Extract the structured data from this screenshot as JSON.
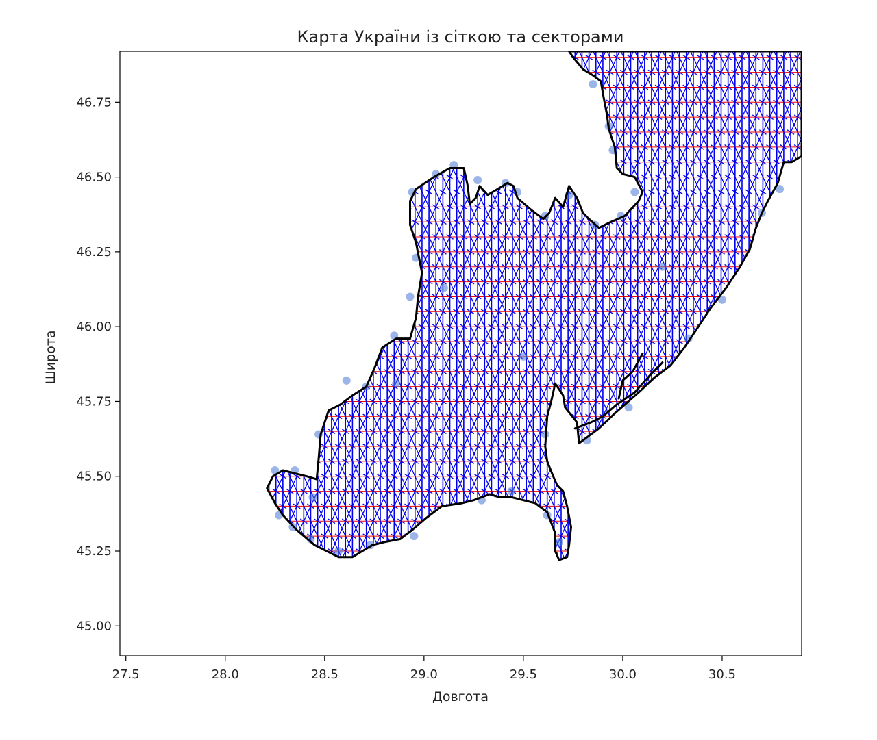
{
  "chart_data": {
    "type": "map",
    "title": "Карта України із сіткою та секторами",
    "xlabel": "Довгота",
    "ylabel": "Широта",
    "xlim": [
      27.47,
      30.9
    ],
    "ylim": [
      44.9,
      46.92
    ],
    "xticks": [
      {
        "value": 27.5,
        "label": "27.5"
      },
      {
        "value": 28.0,
        "label": "28.0"
      },
      {
        "value": 28.5,
        "label": "28.5"
      },
      {
        "value": 29.0,
        "label": "29.0"
      },
      {
        "value": 29.5,
        "label": "29.5"
      },
      {
        "value": 30.0,
        "label": "30.0"
      },
      {
        "value": 30.5,
        "label": "30.5"
      }
    ],
    "yticks": [
      {
        "value": 45.0,
        "label": "45.00"
      },
      {
        "value": 45.25,
        "label": "45.25"
      },
      {
        "value": 45.5,
        "label": "45.50"
      },
      {
        "value": 45.75,
        "label": "45.75"
      },
      {
        "value": 46.0,
        "label": "46.00"
      },
      {
        "value": 46.25,
        "label": "46.25"
      },
      {
        "value": 46.5,
        "label": "46.50"
      },
      {
        "value": 46.75,
        "label": "46.75"
      }
    ],
    "grid": {
      "x_step_deg": 0.035,
      "y_step_deg": 0.05,
      "line_color": "#0000ee",
      "sector_line_color": "#ee0000",
      "point_color": "#4a78d6"
    },
    "outline_color": "#000000",
    "region_outline": [
      [
        28.21,
        45.46
      ],
      [
        28.24,
        45.5
      ],
      [
        28.29,
        45.52
      ],
      [
        28.35,
        45.51
      ],
      [
        28.41,
        45.5
      ],
      [
        28.46,
        45.49
      ],
      [
        28.47,
        45.56
      ],
      [
        28.48,
        45.64
      ],
      [
        28.52,
        45.72
      ],
      [
        28.58,
        45.74
      ],
      [
        28.64,
        45.77
      ],
      [
        28.71,
        45.8
      ],
      [
        28.75,
        45.86
      ],
      [
        28.79,
        45.93
      ],
      [
        28.86,
        45.96
      ],
      [
        28.93,
        45.96
      ],
      [
        28.96,
        46.03
      ],
      [
        28.97,
        46.1
      ],
      [
        28.99,
        46.18
      ],
      [
        28.96,
        46.28
      ],
      [
        28.93,
        46.34
      ],
      [
        28.93,
        46.42
      ],
      [
        28.96,
        46.46
      ],
      [
        29.05,
        46.5
      ],
      [
        29.13,
        46.53
      ],
      [
        29.2,
        46.53
      ],
      [
        29.22,
        46.47
      ],
      [
        29.23,
        46.41
      ],
      [
        29.26,
        46.43
      ],
      [
        29.28,
        46.47
      ],
      [
        29.32,
        46.44
      ],
      [
        29.37,
        46.46
      ],
      [
        29.42,
        46.48
      ],
      [
        29.45,
        46.47
      ],
      [
        29.47,
        46.43
      ],
      [
        29.54,
        46.39
      ],
      [
        29.6,
        46.36
      ],
      [
        29.63,
        46.38
      ],
      [
        29.66,
        46.43
      ],
      [
        29.7,
        46.4
      ],
      [
        29.73,
        46.47
      ],
      [
        29.77,
        46.43
      ],
      [
        29.8,
        46.38
      ],
      [
        29.83,
        46.36
      ],
      [
        29.88,
        46.33
      ],
      [
        29.94,
        46.35
      ],
      [
        30.01,
        46.37
      ],
      [
        30.08,
        46.42
      ],
      [
        30.1,
        46.45
      ],
      [
        30.06,
        46.5
      ],
      [
        30.0,
        46.51
      ],
      [
        29.97,
        46.53
      ],
      [
        29.96,
        46.6
      ],
      [
        29.93,
        46.66
      ],
      [
        29.92,
        46.71
      ],
      [
        29.9,
        46.78
      ],
      [
        29.89,
        46.82
      ],
      [
        29.85,
        46.84
      ],
      [
        29.8,
        46.86
      ],
      [
        29.75,
        46.9
      ],
      [
        29.73,
        46.92
      ],
      [
        30.9,
        46.92
      ],
      [
        30.9,
        46.57
      ],
      [
        30.85,
        46.55
      ],
      [
        30.81,
        46.55
      ],
      [
        30.78,
        46.48
      ],
      [
        30.73,
        46.42
      ],
      [
        30.7,
        46.38
      ],
      [
        30.67,
        46.33
      ],
      [
        30.64,
        46.26
      ],
      [
        30.59,
        46.2
      ],
      [
        30.52,
        46.13
      ],
      [
        30.44,
        46.06
      ],
      [
        30.38,
        46.0
      ],
      [
        30.31,
        45.93
      ],
      [
        30.24,
        45.87
      ],
      [
        30.16,
        45.83
      ],
      [
        30.08,
        45.78
      ],
      [
        29.96,
        45.71
      ],
      [
        29.88,
        45.66
      ],
      [
        29.78,
        45.61
      ],
      [
        29.77,
        45.68
      ],
      [
        29.71,
        45.73
      ],
      [
        29.7,
        45.77
      ],
      [
        29.66,
        45.81
      ],
      [
        29.64,
        45.75
      ],
      [
        29.62,
        45.7
      ],
      [
        29.61,
        45.6
      ],
      [
        29.62,
        45.55
      ],
      [
        29.65,
        45.5
      ],
      [
        29.67,
        45.47
      ],
      [
        29.7,
        45.45
      ],
      [
        29.72,
        45.4
      ],
      [
        29.74,
        45.33
      ],
      [
        29.73,
        45.27
      ],
      [
        29.72,
        45.23
      ],
      [
        29.68,
        45.22
      ],
      [
        29.66,
        45.25
      ],
      [
        29.66,
        45.31
      ],
      [
        29.62,
        45.38
      ],
      [
        29.56,
        45.41
      ],
      [
        29.44,
        45.43
      ],
      [
        29.38,
        45.43
      ],
      [
        29.33,
        45.44
      ],
      [
        29.25,
        45.42
      ],
      [
        29.19,
        45.41
      ],
      [
        29.09,
        45.4
      ],
      [
        29.01,
        45.36
      ],
      [
        28.94,
        45.32
      ],
      [
        28.88,
        45.29
      ],
      [
        28.8,
        45.28
      ],
      [
        28.74,
        45.27
      ],
      [
        28.69,
        45.25
      ],
      [
        28.64,
        45.23
      ],
      [
        28.57,
        45.23
      ],
      [
        28.51,
        45.25
      ],
      [
        28.45,
        45.27
      ],
      [
        28.36,
        45.32
      ],
      [
        28.29,
        45.37
      ],
      [
        28.25,
        45.41
      ],
      [
        28.21,
        45.46
      ]
    ],
    "coast_lines": [
      [
        [
          29.76,
          45.66
        ],
        [
          29.84,
          45.68
        ],
        [
          29.9,
          45.7
        ],
        [
          29.97,
          45.74
        ],
        [
          30.06,
          45.78
        ],
        [
          30.14,
          45.84
        ],
        [
          30.2,
          45.88
        ]
      ],
      [
        [
          29.98,
          45.76
        ],
        [
          30.0,
          45.82
        ],
        [
          30.05,
          45.85
        ],
        [
          30.1,
          45.91
        ]
      ]
    ],
    "sample_points": [
      [
        28.25,
        45.52
      ],
      [
        28.35,
        45.52
      ],
      [
        28.27,
        45.37
      ],
      [
        28.34,
        45.33
      ],
      [
        28.47,
        45.64
      ],
      [
        28.61,
        45.82
      ],
      [
        28.71,
        45.8
      ],
      [
        28.85,
        45.97
      ],
      [
        28.93,
        46.1
      ],
      [
        28.96,
        46.23
      ],
      [
        28.94,
        46.45
      ],
      [
        29.06,
        46.51
      ],
      [
        29.15,
        46.54
      ],
      [
        29.27,
        46.49
      ],
      [
        29.41,
        46.48
      ],
      [
        29.47,
        46.45
      ],
      [
        29.61,
        46.37
      ],
      [
        29.73,
        46.44
      ],
      [
        29.86,
        46.34
      ],
      [
        29.99,
        46.37
      ],
      [
        30.06,
        46.45
      ],
      [
        29.93,
        46.67
      ],
      [
        29.95,
        46.59
      ],
      [
        29.85,
        46.81
      ],
      [
        30.79,
        46.46
      ],
      [
        30.7,
        46.38
      ],
      [
        30.5,
        46.09
      ],
      [
        30.33,
        45.96
      ],
      [
        30.03,
        45.73
      ],
      [
        29.82,
        45.62
      ],
      [
        29.61,
        45.64
      ],
      [
        29.62,
        45.37
      ],
      [
        29.68,
        45.28
      ],
      [
        29.44,
        45.45
      ],
      [
        29.29,
        45.42
      ],
      [
        28.95,
        45.3
      ],
      [
        28.73,
        45.27
      ],
      [
        28.57,
        45.25
      ],
      [
        28.43,
        45.29
      ],
      [
        28.44,
        45.43
      ],
      [
        28.86,
        45.81
      ],
      [
        29.1,
        46.13
      ],
      [
        29.5,
        45.9
      ],
      [
        30.2,
        46.2
      ]
    ]
  }
}
